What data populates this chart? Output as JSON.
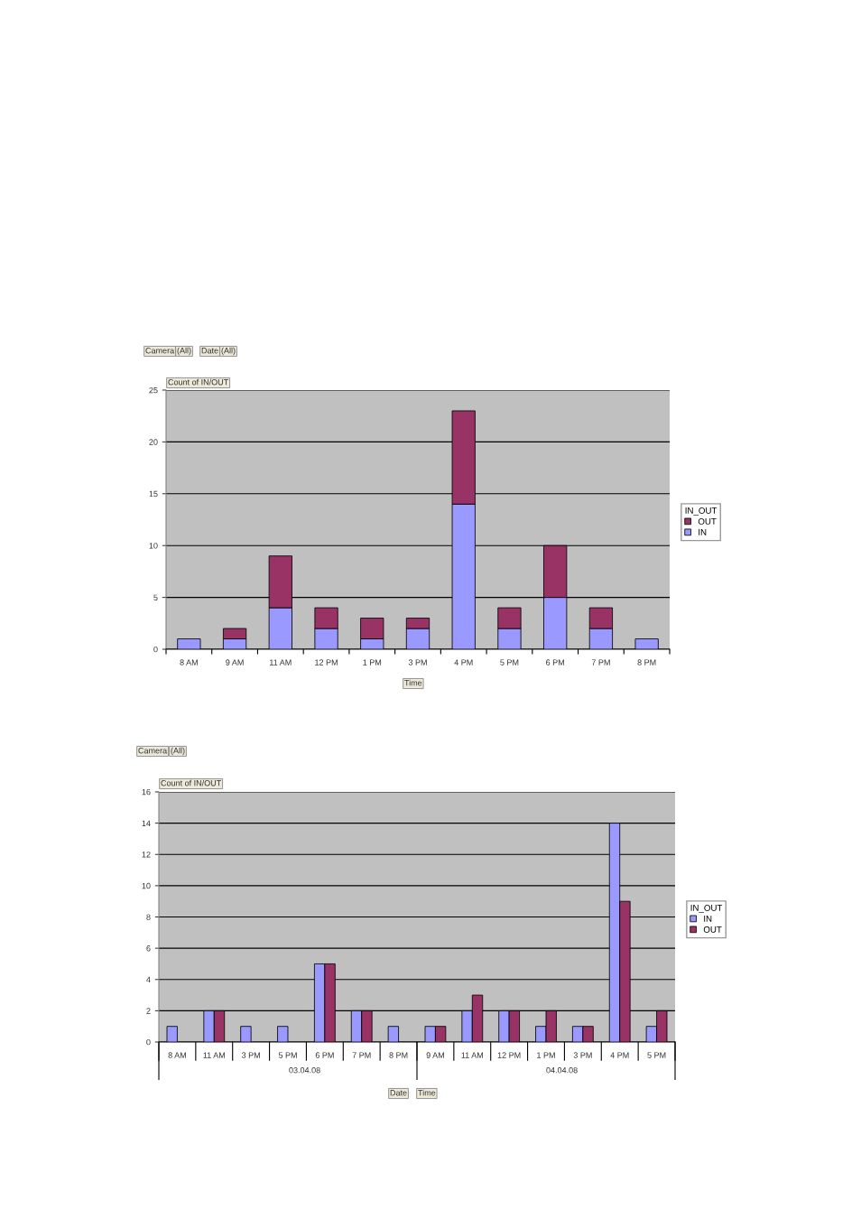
{
  "chart_data": [
    {
      "type": "bar",
      "stacked": true,
      "categories": [
        "8 AM",
        "9 AM",
        "11 AM",
        "12 PM",
        "1 PM",
        "3 PM",
        "4 PM",
        "5 PM",
        "6 PM",
        "7 PM",
        "8 PM"
      ],
      "series": [
        {
          "name": "IN",
          "color": "#9999ff",
          "values": [
            1,
            1,
            4,
            2,
            1,
            2,
            14,
            2,
            5,
            2,
            1
          ]
        },
        {
          "name": "OUT",
          "color": "#993366",
          "values": [
            0,
            1,
            5,
            2,
            2,
            1,
            9,
            2,
            5,
            2,
            0
          ]
        }
      ],
      "ylim": [
        0,
        25
      ],
      "yticks": [
        0,
        5,
        10,
        15,
        20,
        25
      ],
      "grid": "y",
      "legend": "right",
      "legend_title": "IN_OUT",
      "annotations": [
        "Camera",
        "(All)",
        "Date",
        "(All)",
        "Count of IN/OUT",
        "Time"
      ]
    },
    {
      "type": "bar",
      "categories": [
        "8 AM",
        "11 AM",
        "3 PM",
        "5 PM",
        "6 PM",
        "7 PM",
        "8 PM",
        "9 AM",
        "11 AM",
        "12 PM",
        "1 PM",
        "3 PM",
        "4 PM",
        "5 PM"
      ],
      "series": [
        {
          "name": "IN",
          "color": "#9999ff",
          "values": [
            1,
            2,
            1,
            1,
            5,
            2,
            1,
            1,
            2,
            2,
            1,
            1,
            14,
            1
          ]
        },
        {
          "name": "OUT",
          "color": "#993366",
          "values": [
            null,
            2,
            null,
            null,
            5,
            2,
            null,
            1,
            3,
            2,
            2,
            1,
            9,
            2
          ]
        }
      ],
      "ylim": [
        0,
        16
      ],
      "yticks": [
        0,
        2,
        4,
        6,
        8,
        10,
        12,
        14,
        16
      ],
      "grid": "y",
      "legend": "right",
      "legend_title": "IN_OUT",
      "annotations": [
        "Camera",
        "(All)",
        "Count of IN/OUT",
        "Date",
        "Time",
        "03.04.08",
        "04.04.08"
      ]
    }
  ]
}
